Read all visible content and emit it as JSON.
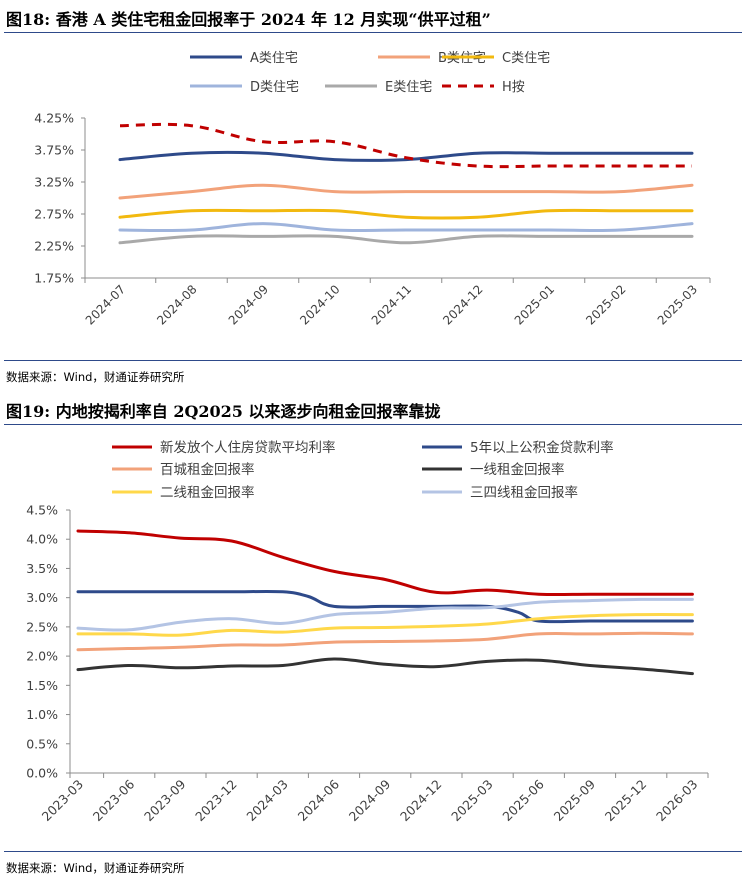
{
  "figures": [
    {
      "title": "图18: 香港 A 类住宅租金回报率于 2024 年 12 月实现“供平过租”",
      "source": "数据来源：Wind，财通证券研究所"
    },
    {
      "title": "图19: 内地按揭利率自 2Q2025 以来逐步向租金回报率靠拢",
      "source": "数据来源：Wind，财通证券研究所"
    }
  ],
  "chart_data": [
    {
      "type": "line",
      "title": "",
      "xlabel": "",
      "ylabel": "",
      "categories": [
        "2024-07",
        "2024-08",
        "2024-09",
        "2024-10",
        "2024-11",
        "2024-12",
        "2025-01",
        "2025-02",
        "2025-03"
      ],
      "ylim": [
        1.75,
        4.25
      ],
      "yticks": [
        "4.25%",
        "3.75%",
        "3.25%",
        "2.75%",
        "2.25%",
        "1.75%"
      ],
      "grid": false,
      "legend": "top",
      "series": [
        {
          "name": "A类住宅",
          "color": "#2e4a8a",
          "dashed": false,
          "values": [
            3.6,
            3.7,
            3.7,
            3.6,
            3.6,
            3.7,
            3.7,
            3.7,
            3.7
          ]
        },
        {
          "name": "B类住宅",
          "color": "#f2a27a",
          "dashed": false,
          "values": [
            3.0,
            3.1,
            3.2,
            3.1,
            3.1,
            3.1,
            3.1,
            3.1,
            3.2
          ]
        },
        {
          "name": "C类住宅",
          "color": "#f2b90f",
          "dashed": false,
          "values": [
            2.7,
            2.8,
            2.8,
            2.8,
            2.7,
            2.7,
            2.8,
            2.8,
            2.8
          ]
        },
        {
          "name": "D类住宅",
          "color": "#9fb4dc",
          "dashed": false,
          "values": [
            2.5,
            2.5,
            2.6,
            2.5,
            2.5,
            2.5,
            2.5,
            2.5,
            2.6
          ]
        },
        {
          "name": "E类住宅",
          "color": "#a9a9a9",
          "dashed": false,
          "values": [
            2.3,
            2.4,
            2.4,
            2.4,
            2.3,
            2.4,
            2.4,
            2.4,
            2.4
          ]
        },
        {
          "name": "H按",
          "color": "#c00000",
          "dashed": true,
          "values": [
            4.13,
            4.13,
            3.88,
            3.88,
            3.63,
            3.5,
            3.5,
            3.5,
            3.5
          ]
        }
      ]
    },
    {
      "type": "line",
      "title": "",
      "xlabel": "",
      "ylabel": "",
      "categories": [
        "2023-03",
        "2023-06",
        "2023-09",
        "2023-12",
        "2024-03",
        "2024-06",
        "2024-09",
        "2024-12",
        "2025-03",
        "2025-06",
        "2025-09",
        "2025-12",
        "2026-03"
      ],
      "ylim": [
        0,
        4.5
      ],
      "yticks": [
        "4.5%",
        "4.0%",
        "3.5%",
        "3.0%",
        "2.5%",
        "2.0%",
        "1.5%",
        "1.0%",
        "0.5%",
        "0.0%"
      ],
      "grid": false,
      "legend": "top",
      "series": [
        {
          "name": "新发放个人住房贷款平均利率",
          "color": "#c00000",
          "dashed": false,
          "x": [
            0,
            1,
            2,
            3,
            4,
            5,
            6,
            7,
            8,
            9,
            10,
            11,
            12
          ],
          "values": [
            4.14,
            4.11,
            4.02,
            3.97,
            3.69,
            3.45,
            3.31,
            3.09,
            3.13,
            3.06,
            3.06,
            3.06,
            3.06
          ]
        },
        {
          "name": "5年以上公积金贷款利率",
          "color": "#2e4a8a",
          "dashed": false,
          "x": [
            0,
            1,
            2,
            3,
            4,
            4.5,
            5,
            6,
            7,
            8,
            8.6,
            9,
            10,
            11,
            12
          ],
          "values": [
            3.1,
            3.1,
            3.1,
            3.1,
            3.1,
            3.02,
            2.85,
            2.85,
            2.85,
            2.85,
            2.75,
            2.6,
            2.6,
            2.6,
            2.6
          ]
        },
        {
          "name": "百城租金回报率",
          "color": "#f2a27a",
          "dashed": false,
          "x": [
            0,
            1,
            2,
            3,
            4,
            5,
            6,
            7,
            8,
            9,
            10,
            11,
            12
          ],
          "values": [
            2.11,
            2.13,
            2.15,
            2.19,
            2.19,
            2.24,
            2.25,
            2.26,
            2.29,
            2.38,
            2.38,
            2.39,
            2.38
          ]
        },
        {
          "name": "一线租金回报率",
          "color": "#333333",
          "dashed": false,
          "x": [
            0,
            1,
            2,
            3,
            4,
            5,
            6,
            7,
            8,
            9,
            10,
            11,
            12
          ],
          "values": [
            1.77,
            1.84,
            1.8,
            1.83,
            1.84,
            1.95,
            1.86,
            1.82,
            1.91,
            1.93,
            1.84,
            1.78,
            1.7
          ]
        },
        {
          "name": "二线租金回报率",
          "color": "#ffd84a",
          "dashed": false,
          "x": [
            0,
            1,
            2,
            3,
            4,
            5,
            6,
            7,
            8,
            9,
            10,
            11,
            12
          ],
          "values": [
            2.38,
            2.38,
            2.36,
            2.44,
            2.41,
            2.48,
            2.49,
            2.51,
            2.55,
            2.64,
            2.69,
            2.71,
            2.71
          ]
        },
        {
          "name": "三四线租金回报率",
          "color": "#b4c4e4",
          "dashed": false,
          "x": [
            0,
            1,
            2,
            3,
            4,
            5,
            6,
            7,
            8,
            9,
            10,
            11,
            12
          ],
          "values": [
            2.48,
            2.45,
            2.58,
            2.64,
            2.56,
            2.71,
            2.75,
            2.82,
            2.83,
            2.92,
            2.95,
            2.97,
            2.97
          ]
        }
      ]
    }
  ]
}
